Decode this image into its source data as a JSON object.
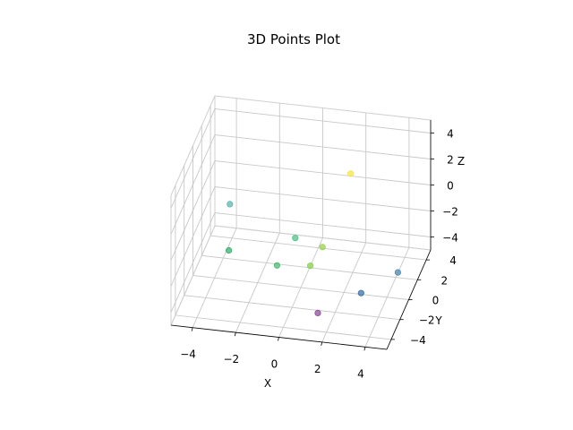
{
  "chart_data": {
    "type": "scatter",
    "title": "3D Points Plot",
    "xlabel": "X",
    "ylabel": "Y",
    "zlabel": "Z",
    "xlim": [
      -5,
      5
    ],
    "ylim": [
      -5,
      5
    ],
    "zlim": [
      -5,
      5
    ],
    "xticks": [
      "−4",
      "−2",
      "0",
      "2",
      "4"
    ],
    "yticks": [
      "−4",
      "−2",
      "0",
      "2",
      "4"
    ],
    "zticks": [
      "−4",
      "−2",
      "0",
      "2",
      "4"
    ],
    "grid": true,
    "colormap": "viridis",
    "points": [
      {
        "x": 1.5,
        "y": -3.5,
        "z": -4.0,
        "color": "#8e4d9e"
      },
      {
        "x": 3.2,
        "y": -2.0,
        "z": -3.3,
        "color": "#3f73a5"
      },
      {
        "x": 4.5,
        "y": 0.0,
        "z": -3.0,
        "color": "#4a8bb5"
      },
      {
        "x": -4.0,
        "y": 3.5,
        "z": -2.0,
        "color": "#5fb8b0"
      },
      {
        "x": -0.5,
        "y": 1.2,
        "z": -2.2,
        "color": "#54c28a"
      },
      {
        "x": 0.8,
        "y": 1.0,
        "z": -2.5,
        "color": "#9bd34f"
      },
      {
        "x": -1.0,
        "y": -0.5,
        "z": -3.1,
        "color": "#4cbb74"
      },
      {
        "x": -3.5,
        "y": 0.8,
        "z": -3.4,
        "color": "#3aaf6c"
      },
      {
        "x": 0.5,
        "y": -0.3,
        "z": -3.0,
        "color": "#86d44a"
      },
      {
        "x": 2.0,
        "y": 1.5,
        "z": 3.0,
        "color": "#f7e44b"
      }
    ]
  }
}
